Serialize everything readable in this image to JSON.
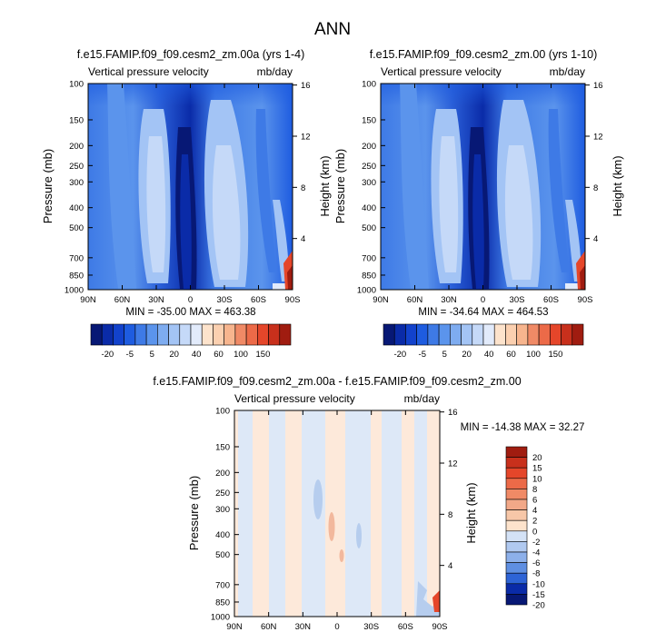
{
  "page_title": "ANN",
  "colors": {
    "c_n20": "#071875",
    "c_n15": "#0a2ba8",
    "c_n10": "#1242cc",
    "c_n5": "#1e5ce0",
    "c_n2": "#3e7ae6",
    "c_0": "#5b94ec",
    "c_2": "#7eacf0",
    "c_5": "#a3c4f5",
    "c_10": "#c5d9f8",
    "c_20": "#e2ebfb",
    "c_p": "#fde3cc",
    "c_p2": "#f7b58e",
    "c_p3": "#e5462a",
    "c_p4": "#a01c10",
    "d_neg": "#dde8f7",
    "d_neg2": "#b6cdee",
    "d_pos": "#fbe6d6",
    "d_pos2": "#f2b89d"
  },
  "chart_data": [
    {
      "type": "heatmap",
      "title": "f.e15.FAMIP.f09_f09.cesm2_zm.00a (yrs 1-4)",
      "variable_label": "Vertical pressure velocity",
      "units_label": "mb/day",
      "ylabel": "Pressure (mb)",
      "y2label": "Height (km)",
      "x_ticks": [
        "90N",
        "60N",
        "30N",
        "0",
        "30S",
        "60S",
        "90S"
      ],
      "y_ticks": [
        "100",
        "150",
        "200",
        "250",
        "300",
        "400",
        "500",
        "700",
        "850",
        "1000"
      ],
      "y_values": [
        100,
        150,
        200,
        250,
        300,
        400,
        500,
        700,
        850,
        1000
      ],
      "y_range": [
        100,
        1000
      ],
      "y2_ticks": [
        "16",
        "12",
        "8",
        "4"
      ],
      "y2_values": [
        16,
        12,
        8,
        4
      ],
      "stats": "MIN = -35.00   MAX = 463.38",
      "colorbar_labels": [
        "-20",
        "-5",
        "5",
        "20",
        "40",
        "60",
        "100",
        "150"
      ],
      "levels": [
        -35,
        -20,
        -10,
        -5,
        -2,
        5,
        10,
        20,
        30,
        40,
        50,
        60,
        80,
        100,
        120,
        150
      ]
    },
    {
      "type": "heatmap",
      "title": "f.e15.FAMIP.f09_f09.cesm2_zm.00 (yrs 1-10)",
      "variable_label": "Vertical pressure velocity",
      "units_label": "mb/day",
      "ylabel": "Pressure (mb)",
      "y2label": "Height (km)",
      "x_ticks": [
        "90N",
        "60N",
        "30N",
        "0",
        "30S",
        "60S",
        "90S"
      ],
      "y_ticks": [
        "100",
        "150",
        "200",
        "250",
        "300",
        "400",
        "500",
        "700",
        "850",
        "1000"
      ],
      "y_values": [
        100,
        150,
        200,
        250,
        300,
        400,
        500,
        700,
        850,
        1000
      ],
      "y_range": [
        100,
        1000
      ],
      "y2_ticks": [
        "16",
        "12",
        "8",
        "4"
      ],
      "y2_values": [
        16,
        12,
        8,
        4
      ],
      "stats": "MIN = -34.64   MAX = 464.53",
      "colorbar_labels": [
        "-20",
        "-5",
        "5",
        "20",
        "40",
        "60",
        "100",
        "150"
      ],
      "levels": [
        -35,
        -20,
        -10,
        -5,
        -2,
        5,
        10,
        20,
        30,
        40,
        50,
        60,
        80,
        100,
        120,
        150
      ]
    },
    {
      "type": "heatmap",
      "title": "f.e15.FAMIP.f09_f09.cesm2_zm.00a - f.e15.FAMIP.f09_f09.cesm2_zm.00",
      "variable_label": "Vertical pressure velocity",
      "units_label": "mb/day",
      "ylabel": "Pressure (mb)",
      "y2label": "Height (km)",
      "x_ticks": [
        "90N",
        "60N",
        "30N",
        "0",
        "30S",
        "60S",
        "90S"
      ],
      "y_ticks": [
        "100",
        "150",
        "200",
        "250",
        "300",
        "400",
        "500",
        "700",
        "850",
        "1000"
      ],
      "y_values": [
        100,
        150,
        200,
        250,
        300,
        400,
        500,
        700,
        850,
        1000
      ],
      "y_range": [
        100,
        1000
      ],
      "y2_ticks": [
        "16",
        "12",
        "8",
        "4"
      ],
      "y2_values": [
        16,
        12,
        8,
        4
      ],
      "stats": "MIN = -14.38   MAX = 32.27",
      "colorbar_labels": [
        "20",
        "15",
        "10",
        "8",
        "6",
        "4",
        "2",
        "0",
        "-2",
        "-4",
        "-6",
        "-8",
        "-10",
        "-15",
        "-20"
      ],
      "levels": [
        -20,
        -15,
        -10,
        -8,
        -6,
        -4,
        -2,
        0,
        2,
        4,
        6,
        8,
        10,
        15,
        20
      ]
    }
  ]
}
